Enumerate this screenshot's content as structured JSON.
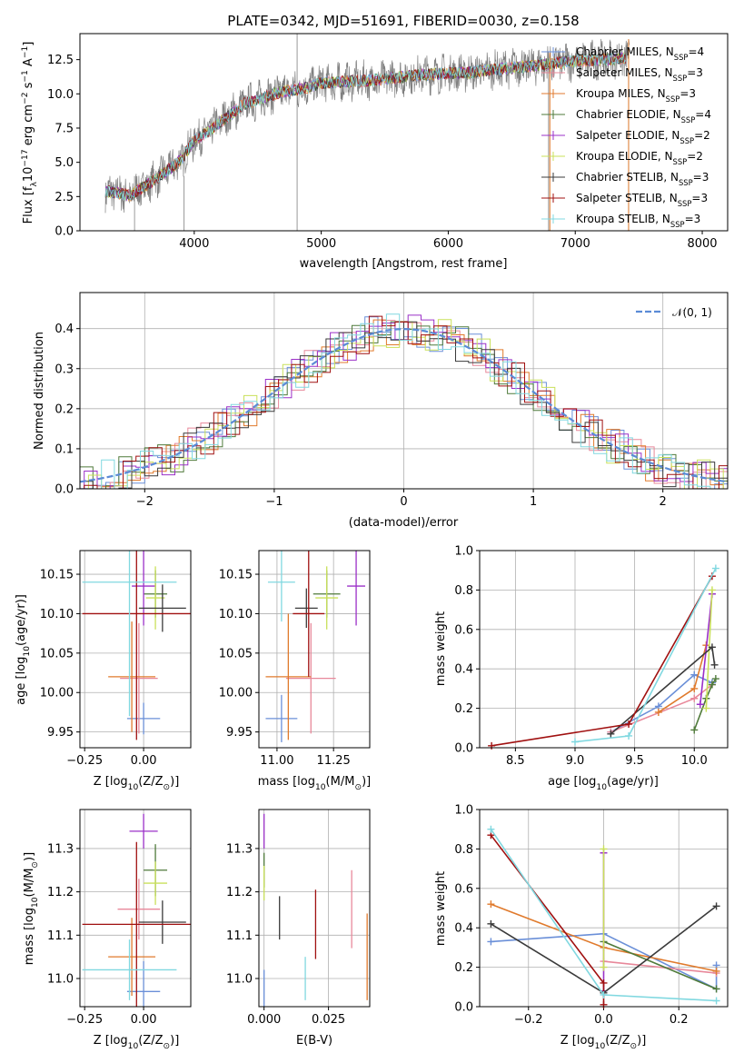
{
  "colors": {
    "chabrier_miles": "#6a8fd8",
    "salpeter_miles": "#e8889a",
    "kroupa_miles": "#e07a2c",
    "chabrier_elodie": "#4f7a3a",
    "salpeter_elodie": "#9b30c8",
    "kroupa_elodie": "#c9e05a",
    "chabrier_stelib": "#3a3a3a",
    "salpeter_stelib": "#a01010",
    "kroupa_stelib": "#80d8e0",
    "data": "#808080"
  },
  "chart_data": [
    {
      "type": "line",
      "title": "PLATE=0342, MJD=51691, FIBERID=0030, z=0.158",
      "xlabel": "wavelength [Angstrom, rest frame]",
      "ylabel": "Flux [f",
      "ylabel_sub": "λ",
      "ylabel_rest": "10",
      "ylabel_exp": "−17",
      "ylabel_units": " erg cm",
      "ylabel_units_exp": "−2",
      "ylabel_units2": " s",
      "ylabel_units2_exp": "−1",
      "ylabel_units3": " A",
      "ylabel_units3_exp": "−1",
      "ylabel_end": "]",
      "xlim": [
        3100,
        8200
      ],
      "ylim": [
        0,
        14.4
      ],
      "xticks": [
        4000,
        5000,
        6000,
        7000,
        8000
      ],
      "yticks": [
        0.0,
        2.5,
        5.0,
        7.5,
        10.0,
        12.5
      ],
      "legend_position": "upper-right",
      "series": [
        {
          "name": "Chabrier MILES, N",
          "sub": "SSP",
          "n": "=4",
          "color_key": "chabrier_miles"
        },
        {
          "name": "Salpeter MILES, N",
          "sub": "SSP",
          "n": "=3",
          "color_key": "salpeter_miles"
        },
        {
          "name": "Kroupa MILES, N",
          "sub": "SSP",
          "n": "=3",
          "color_key": "kroupa_miles"
        },
        {
          "name": "Chabrier ELODIE, N",
          "sub": "SSP",
          "n": "=4",
          "color_key": "chabrier_elodie"
        },
        {
          "name": "Salpeter ELODIE, N",
          "sub": "SSP",
          "n": "=2",
          "color_key": "salpeter_elodie"
        },
        {
          "name": "Kroupa ELODIE, N",
          "sub": "SSP",
          "n": "=2",
          "color_key": "kroupa_elodie"
        },
        {
          "name": "Chabrier STELIB, N",
          "sub": "SSP",
          "n": "=3",
          "color_key": "chabrier_stelib"
        },
        {
          "name": "Salpeter STELIB, N",
          "sub": "SSP",
          "n": "=3",
          "color_key": "salpeter_stelib"
        },
        {
          "name": "Kroupa STELIB, N",
          "sub": "SSP",
          "n": "=3",
          "color_key": "kroupa_stelib"
        }
      ],
      "spectrum_envelope": {
        "x": [
          3300,
          3500,
          3700,
          3900,
          4000,
          4100,
          4200,
          4300,
          4400,
          4500,
          4600,
          4700,
          4800,
          4900,
          5000,
          5200,
          5400,
          5600,
          5800,
          6000,
          6200,
          6400,
          6600,
          6800,
          7000,
          7200,
          7400
        ],
        "y": [
          2.9,
          2.6,
          3.8,
          5.2,
          6.6,
          7.2,
          7.9,
          8.6,
          9.3,
          9.5,
          9.9,
          10.2,
          10.3,
          10.5,
          10.8,
          10.9,
          11.0,
          11.2,
          11.4,
          11.5,
          11.6,
          11.8,
          12.0,
          12.2,
          12.4,
          12.5,
          12.6
        ]
      }
    },
    {
      "type": "histogram",
      "xlabel": "(data-model)/error",
      "ylabel": "Normed distribution",
      "xlim": [
        -2.5,
        2.5
      ],
      "ylim": [
        0,
        0.49
      ],
      "xticks": [
        -2,
        -1,
        0,
        1,
        2
      ],
      "yticks": [
        0.0,
        0.1,
        0.2,
        0.3,
        0.4
      ],
      "grid": true,
      "legend": "𝒩(0, 1)",
      "legend_position": "upper-right",
      "bin_width": 0.1,
      "reference_curve": "standard normal density"
    },
    {
      "type": "scatter",
      "panel": "age-vs-Z",
      "xlabel": "Z [log",
      "xlabel_sub": "10",
      "xlabel_rest": "(Z/Z",
      "xlabel_sun": "⊙",
      "xlabel_end": ")]",
      "ylabel": "age  [log",
      "ylabel_sub": "10",
      "ylabel_rest": "(age/yr)]",
      "xlim": [
        -0.27,
        0.2
      ],
      "ylim": [
        9.93,
        10.18
      ],
      "xticks": [
        "-0.25",
        "0.00"
      ],
      "xtickvals": [
        -0.25,
        0.0
      ],
      "yticks": [
        "9.95",
        "10.00",
        "10.05",
        "10.10",
        "10.15"
      ],
      "ytickvals": [
        9.95,
        10.0,
        10.05,
        10.1,
        10.15
      ],
      "points": [
        {
          "k": "chabrier_miles",
          "x": 0.0,
          "xe": 0.07,
          "y": 9.967,
          "ye": 0.02
        },
        {
          "k": "salpeter_miles",
          "x": -0.02,
          "xe": 0.08,
          "y": 10.018,
          "ye": 0.07
        },
        {
          "k": "kroupa_miles",
          "x": -0.05,
          "xe": 0.1,
          "y": 10.02,
          "ye": 0.07
        },
        {
          "k": "chabrier_elodie",
          "x": 0.05,
          "xe": 0.05,
          "y": 10.125,
          "ye": 0.03
        },
        {
          "k": "salpeter_elodie",
          "x": 0.0,
          "xe": 0.05,
          "y": 10.135,
          "ye": 0.05
        },
        {
          "k": "kroupa_elodie",
          "x": 0.05,
          "xe": 0.04,
          "y": 10.12,
          "ye": 0.04
        },
        {
          "k": "chabrier_stelib",
          "x": 0.08,
          "xe": 0.1,
          "y": 10.107,
          "ye": 0.03
        },
        {
          "k": "salpeter_stelib",
          "x": -0.03,
          "xe": 0.23,
          "y": 10.1,
          "ye": 0.16
        },
        {
          "k": "kroupa_stelib",
          "x": -0.06,
          "xe": 0.2,
          "y": 10.14,
          "ye": 0.17
        }
      ]
    },
    {
      "type": "scatter",
      "panel": "age-vs-mass",
      "xlabel": "mass [log",
      "xlabel_sub": "10",
      "xlabel_rest": "(M/M",
      "xlabel_sun": "⊙",
      "xlabel_end": ")]",
      "xlim": [
        10.92,
        11.41
      ],
      "ylim": [
        9.93,
        10.18
      ],
      "xticks": [
        "11.00",
        "11.25"
      ],
      "xtickvals": [
        11.0,
        11.25
      ],
      "yticks": [
        "9.95",
        "10.00",
        "10.05",
        "10.10",
        "10.15"
      ],
      "ytickvals": [
        9.95,
        10.0,
        10.05,
        10.1,
        10.15
      ],
      "points": [
        {
          "k": "chabrier_miles",
          "x": 11.02,
          "xe": 0.07,
          "y": 9.967,
          "ye": 0.03
        },
        {
          "k": "salpeter_miles",
          "x": 11.15,
          "xe": 0.11,
          "y": 10.018,
          "ye": 0.07
        },
        {
          "k": "kroupa_miles",
          "x": 11.05,
          "xe": 0.1,
          "y": 10.02,
          "ye": 0.08
        },
        {
          "k": "chabrier_elodie",
          "x": 11.22,
          "xe": 0.06,
          "y": 10.125,
          "ye": 0.03
        },
        {
          "k": "salpeter_elodie",
          "x": 11.35,
          "xe": 0.04,
          "y": 10.135,
          "ye": 0.05
        },
        {
          "k": "kroupa_elodie",
          "x": 11.22,
          "xe": 0.05,
          "y": 10.12,
          "ye": 0.04
        },
        {
          "k": "chabrier_stelib",
          "x": 11.13,
          "xe": 0.05,
          "y": 10.107,
          "ye": 0.025
        },
        {
          "k": "salpeter_stelib",
          "x": 11.14,
          "xe": 0.07,
          "y": 10.1,
          "ye": 0.08
        },
        {
          "k": "kroupa_stelib",
          "x": 11.02,
          "xe": 0.06,
          "y": 10.14,
          "ye": 0.05
        }
      ]
    },
    {
      "type": "line",
      "panel": "mass-weight-vs-age",
      "xlabel": "age  [log",
      "xlabel_sub": "10",
      "xlabel_rest": "(age/yr)]",
      "ylabel": "mass weight",
      "xlim": [
        8.2,
        10.28
      ],
      "ylim": [
        0,
        1
      ],
      "xticks": [
        "8.5",
        "9.0",
        "9.5",
        "10.0"
      ],
      "xtickvals": [
        8.5,
        9.0,
        9.5,
        10.0
      ],
      "yticks": [
        "0.0",
        "0.2",
        "0.4",
        "0.6",
        "0.8",
        "1.0"
      ],
      "ytickvals": [
        0,
        0.2,
        0.4,
        0.6,
        0.8,
        1.0
      ],
      "grid": true,
      "series": [
        {
          "k": "chabrier_miles",
          "x": [
            9.3,
            9.7,
            10.0,
            10.15
          ],
          "y": [
            0.08,
            0.21,
            0.37,
            0.33
          ]
        },
        {
          "k": "salpeter_miles",
          "x": [
            9.3,
            10.0,
            10.15
          ],
          "y": [
            0.08,
            0.25,
            0.32
          ]
        },
        {
          "k": "kroupa_miles",
          "x": [
            9.7,
            10.0,
            10.1
          ],
          "y": [
            0.18,
            0.3,
            0.52
          ]
        },
        {
          "k": "chabrier_elodie",
          "x": [
            10.0,
            10.1,
            10.15,
            10.18
          ],
          "y": [
            0.09,
            0.25,
            0.32,
            0.35
          ]
        },
        {
          "k": "salpeter_elodie",
          "x": [
            10.05,
            10.15
          ],
          "y": [
            0.22,
            0.78
          ]
        },
        {
          "k": "kroupa_elodie",
          "x": [
            10.1,
            10.15
          ],
          "y": [
            0.2,
            0.8
          ]
        },
        {
          "k": "chabrier_stelib",
          "x": [
            9.3,
            10.15,
            10.17
          ],
          "y": [
            0.07,
            0.51,
            0.42
          ]
        },
        {
          "k": "salpeter_stelib",
          "x": [
            8.3,
            9.45,
            10.15
          ],
          "y": [
            0.01,
            0.12,
            0.87
          ]
        },
        {
          "k": "kroupa_stelib",
          "x": [
            9.0,
            9.45,
            10.18
          ],
          "y": [
            0.03,
            0.06,
            0.91
          ]
        }
      ]
    },
    {
      "type": "scatter",
      "panel": "mass-vs-Z",
      "xlabel": "Z [log",
      "xlabel_sub": "10",
      "xlabel_rest": "(Z/Z",
      "xlabel_sun": "⊙",
      "xlabel_end": ")]",
      "ylabel": "mass [log",
      "ylabel_sub": "10",
      "ylabel_rest": "(M/M",
      "ylabel_sun": "⊙",
      "ylabel_end": ")]",
      "xlim": [
        -0.27,
        0.2
      ],
      "ylim": [
        10.935,
        11.39
      ],
      "xticks": [
        "-0.25",
        "0.00"
      ],
      "xtickvals": [
        -0.25,
        0.0
      ],
      "yticks": [
        "11.0",
        "11.1",
        "11.2",
        "11.3"
      ],
      "ytickvals": [
        11.0,
        11.1,
        11.2,
        11.3
      ],
      "points": [
        {
          "k": "chabrier_miles",
          "x": 0.0,
          "xe": 0.07,
          "y": 10.97,
          "ye": 0.07
        },
        {
          "k": "salpeter_miles",
          "x": -0.02,
          "xe": 0.09,
          "y": 11.16,
          "ye": 0.07
        },
        {
          "k": "kroupa_miles",
          "x": -0.05,
          "xe": 0.1,
          "y": 11.05,
          "ye": 0.09
        },
        {
          "k": "chabrier_elodie",
          "x": 0.05,
          "xe": 0.05,
          "y": 11.25,
          "ye": 0.06
        },
        {
          "k": "salpeter_elodie",
          "x": 0.0,
          "xe": 0.06,
          "y": 11.34,
          "ye": 0.04
        },
        {
          "k": "kroupa_elodie",
          "x": 0.05,
          "xe": 0.05,
          "y": 11.22,
          "ye": 0.05
        },
        {
          "k": "chabrier_stelib",
          "x": 0.08,
          "xe": 0.1,
          "y": 11.13,
          "ye": 0.05
        },
        {
          "k": "salpeter_stelib",
          "x": -0.03,
          "xe": 0.23,
          "y": 11.125,
          "ye": 0.19
        },
        {
          "k": "kroupa_stelib",
          "x": -0.06,
          "xe": 0.2,
          "y": 11.02,
          "ye": 0.07
        }
      ]
    },
    {
      "type": "scatter",
      "panel": "mass-vs-EBV",
      "xlabel": "E(B-V)",
      "xlim": [
        -0.002,
        0.041
      ],
      "ylim": [
        10.935,
        11.39
      ],
      "xticks": [
        "0.000",
        "0.025"
      ],
      "xtickvals": [
        0.0,
        0.025
      ],
      "yticks": [
        "11.0",
        "11.1",
        "11.2",
        "11.3"
      ],
      "ytickvals": [
        11.0,
        11.1,
        11.2,
        11.3
      ],
      "points": [
        {
          "k": "chabrier_miles",
          "x": 0.0,
          "y": 10.97,
          "ye": 0.05
        },
        {
          "k": "salpeter_miles",
          "x": 0.034,
          "y": 11.16,
          "ye": 0.09
        },
        {
          "k": "kroupa_miles",
          "x": 0.04,
          "y": 11.05,
          "ye": 0.1
        },
        {
          "k": "chabrier_elodie",
          "x": 0.0,
          "y": 11.25,
          "ye": 0.04
        },
        {
          "k": "salpeter_elodie",
          "x": 0.0,
          "y": 11.34,
          "ye": 0.04
        },
        {
          "k": "kroupa_elodie",
          "x": 0.0,
          "y": 11.22,
          "ye": 0.04
        },
        {
          "k": "chabrier_stelib",
          "x": 0.006,
          "y": 11.14,
          "ye": 0.05
        },
        {
          "k": "salpeter_stelib",
          "x": 0.02,
          "y": 11.125,
          "ye": 0.08
        },
        {
          "k": "kroupa_stelib",
          "x": 0.016,
          "y": 11.0,
          "ye": 0.05
        }
      ]
    },
    {
      "type": "line",
      "panel": "mass-weight-vs-Z",
      "xlabel": "Z [log",
      "xlabel_sub": "10",
      "xlabel_rest": "(Z/Z",
      "xlabel_sun": "⊙",
      "xlabel_end": ")]",
      "ylabel": "mass weight",
      "xlim": [
        -0.33,
        0.33
      ],
      "ylim": [
        0,
        1
      ],
      "xticks": [
        "-0.2",
        "0.0",
        "0.2"
      ],
      "xtickvals": [
        -0.2,
        0.0,
        0.2
      ],
      "yticks": [
        "0.0",
        "0.2",
        "0.4",
        "0.6",
        "0.8",
        "1.0"
      ],
      "ytickvals": [
        0,
        0.2,
        0.4,
        0.6,
        0.8,
        1.0
      ],
      "grid": true,
      "series": [
        {
          "k": "chabrier_miles",
          "x": [
            -0.3,
            0.0,
            0.3,
            0.3
          ],
          "y": [
            0.33,
            0.37,
            0.09,
            0.21
          ]
        },
        {
          "k": "salpeter_miles",
          "x": [
            0.0,
            0.3
          ],
          "y": [
            0.23,
            0.17
          ]
        },
        {
          "k": "kroupa_miles",
          "x": [
            -0.3,
            0.0,
            0.3
          ],
          "y": [
            0.52,
            0.3,
            0.18
          ]
        },
        {
          "k": "chabrier_elodie",
          "x": [
            0.0,
            0.3
          ],
          "y": [
            0.33,
            0.09
          ]
        },
        {
          "k": "salpeter_elodie",
          "x": [
            0.0,
            0.0
          ],
          "y": [
            0.08,
            0.78
          ]
        },
        {
          "k": "kroupa_elodie",
          "x": [
            0.0,
            0.0
          ],
          "y": [
            0.2,
            0.8
          ]
        },
        {
          "k": "chabrier_stelib",
          "x": [
            -0.3,
            0.0,
            0.3
          ],
          "y": [
            0.42,
            0.07,
            0.51
          ]
        },
        {
          "k": "salpeter_stelib",
          "x": [
            -0.3,
            0.0,
            0.0
          ],
          "y": [
            0.87,
            0.12,
            0.01
          ]
        },
        {
          "k": "kroupa_stelib",
          "x": [
            -0.3,
            0.0,
            0.3
          ],
          "y": [
            0.9,
            0.06,
            0.03
          ]
        }
      ]
    }
  ]
}
